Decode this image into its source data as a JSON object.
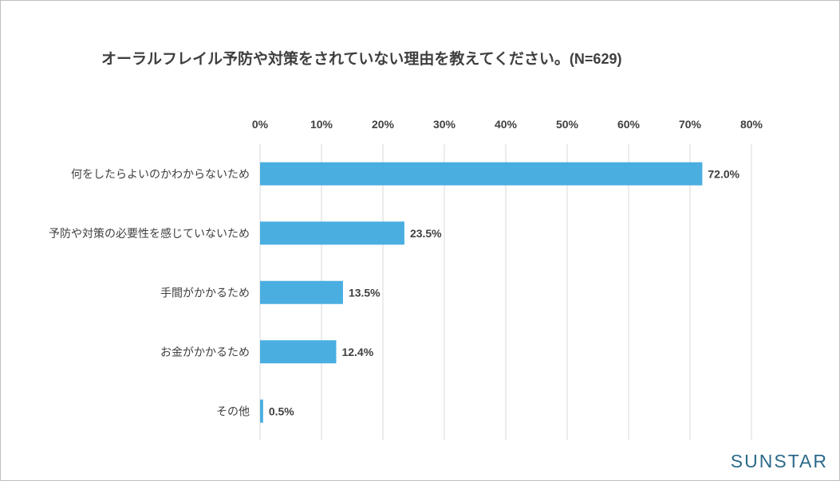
{
  "title": "オーラルフレイル予防や対策をされていない理由を教えてください。",
  "title_n": "(N=629)",
  "brand": "SUNSTAR",
  "colors": {
    "bar": "#4aaee0",
    "grid": "#d9d9d9",
    "text": "#404040"
  },
  "chart_data": {
    "type": "bar",
    "orientation": "horizontal",
    "title": "オーラルフレイル予防や対策をされていない理由を教えてください。(N=629)",
    "categories": [
      "何をしたらよいのかわからないため",
      "予防や対策の必要性を感じていないため",
      "手間がかかるため",
      "お金がかかるため",
      "その他"
    ],
    "values": [
      72.0,
      23.5,
      13.5,
      12.4,
      0.5
    ],
    "value_labels": [
      "72.0%",
      "23.5%",
      "13.5%",
      "12.4%",
      "0.5%"
    ],
    "ticks": [
      0,
      10,
      20,
      30,
      40,
      50,
      60,
      70,
      80
    ],
    "tick_labels": [
      "0%",
      "10%",
      "20%",
      "30%",
      "40%",
      "50%",
      "60%",
      "70%",
      "80%"
    ],
    "xlim": [
      0,
      80
    ],
    "axis_position": "top",
    "grid": true,
    "legend": false
  }
}
